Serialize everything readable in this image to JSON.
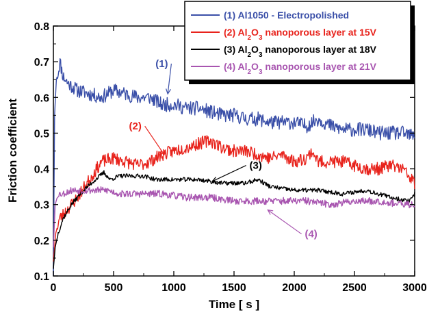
{
  "chart_data": {
    "type": "line",
    "title": "",
    "xlabel": "Time [ s ]",
    "ylabel": "Friction coefficient",
    "xlim": [
      0,
      3000
    ],
    "ylim": [
      0.1,
      0.8
    ],
    "x_ticks": [
      0,
      500,
      1000,
      1500,
      2000,
      2500,
      3000
    ],
    "y_ticks": [
      0.1,
      0.2,
      0.3,
      0.4,
      0.5,
      0.6,
      0.7,
      0.8
    ],
    "x_tick_labels": [
      "0",
      "500",
      "1000",
      "1500",
      "2000",
      "2500",
      "3000"
    ],
    "y_tick_labels": [
      "0.1",
      "0.2",
      "0.3",
      "0.4",
      "0.5",
      "0.6",
      "0.7",
      "0.8"
    ],
    "grid": false,
    "legend_position": "top-right",
    "legend": [
      {
        "prefix": "(1) Al1050 - Electropolished",
        "sub1": "",
        "mid": "",
        "sub2": "",
        "suffix": "",
        "color": "#3a4fa8"
      },
      {
        "prefix": "(2) Al",
        "sub1": "2",
        "mid": "O",
        "sub2": "3",
        "suffix": " nanoporous layer at 15V",
        "color": "#e8231c"
      },
      {
        "prefix": "(3) Al",
        "sub1": "2",
        "mid": "O",
        "sub2": "3",
        "suffix": " nanoporous layer at 18V",
        "color": "#000000"
      },
      {
        "prefix": "(4) Al",
        "sub1": "2",
        "mid": "O",
        "sub2": "3",
        "suffix": " nanoporous layer at 21V",
        "color": "#a855b0"
      }
    ],
    "annotations": [
      {
        "text": "(1)",
        "color": "#3a4fa8",
        "label_x": 900,
        "label_y": 0.685,
        "tip_x": 950,
        "tip_y": 0.61
      },
      {
        "text": "(2)",
        "color": "#e8231c",
        "label_x": 680,
        "label_y": 0.51,
        "tip_x": 920,
        "tip_y": 0.44
      },
      {
        "text": "(3)",
        "color": "#000000",
        "label_x": 1680,
        "label_y": 0.4,
        "tip_x": 1320,
        "tip_y": 0.365
      },
      {
        "text": "(4)",
        "color": "#a855b0",
        "label_x": 2140,
        "label_y": 0.208,
        "tip_x": 1780,
        "tip_y": 0.285
      }
    ],
    "series": [
      {
        "name": "(1) Al1050 - Electropolished",
        "color": "#3a4fa8",
        "noise": 0.02,
        "seed": 11,
        "x": [
          0,
          10,
          25,
          40,
          55,
          80,
          120,
          200,
          300,
          400,
          500,
          600,
          700,
          800,
          900,
          1000,
          1100,
          1200,
          1300,
          1400,
          1500,
          1600,
          1700,
          1800,
          1900,
          2000,
          2100,
          2200,
          2300,
          2400,
          2500,
          2600,
          2700,
          2800,
          2900,
          3000
        ],
        "y": [
          0.1,
          0.55,
          0.65,
          0.67,
          0.7,
          0.66,
          0.64,
          0.62,
          0.61,
          0.6,
          0.62,
          0.61,
          0.6,
          0.6,
          0.58,
          0.58,
          0.57,
          0.57,
          0.56,
          0.55,
          0.55,
          0.54,
          0.54,
          0.53,
          0.53,
          0.53,
          0.52,
          0.54,
          0.52,
          0.51,
          0.51,
          0.51,
          0.5,
          0.5,
          0.5,
          0.49
        ]
      },
      {
        "name": "(2) Al2O3 nanoporous layer at 15V",
        "color": "#e8231c",
        "noise": 0.018,
        "seed": 23,
        "x": [
          0,
          20,
          50,
          100,
          200,
          300,
          400,
          500,
          600,
          700,
          800,
          900,
          1000,
          1100,
          1200,
          1300,
          1400,
          1500,
          1600,
          1700,
          1800,
          1900,
          2000,
          2100,
          2150,
          2200,
          2300,
          2400,
          2500,
          2600,
          2700,
          2800,
          2900,
          2950,
          3000
        ],
        "y": [
          0.14,
          0.22,
          0.26,
          0.28,
          0.32,
          0.37,
          0.42,
          0.43,
          0.42,
          0.41,
          0.42,
          0.44,
          0.45,
          0.46,
          0.47,
          0.48,
          0.46,
          0.45,
          0.45,
          0.44,
          0.43,
          0.44,
          0.42,
          0.43,
          0.45,
          0.42,
          0.42,
          0.42,
          0.41,
          0.4,
          0.4,
          0.41,
          0.4,
          0.38,
          0.36
        ]
      },
      {
        "name": "(3) Al2O3 nanoporous layer at 18V",
        "color": "#000000",
        "noise": 0.006,
        "seed": 37,
        "x": [
          0,
          15,
          40,
          80,
          150,
          250,
          350,
          420,
          470,
          550,
          650,
          750,
          850,
          1000,
          1200,
          1400,
          1600,
          1700,
          1800,
          2000,
          2200,
          2400,
          2600,
          2800,
          2950,
          3000
        ],
        "y": [
          0.12,
          0.18,
          0.22,
          0.26,
          0.3,
          0.34,
          0.37,
          0.39,
          0.37,
          0.38,
          0.38,
          0.38,
          0.37,
          0.37,
          0.37,
          0.36,
          0.36,
          0.37,
          0.35,
          0.34,
          0.34,
          0.33,
          0.34,
          0.32,
          0.31,
          0.33
        ]
      },
      {
        "name": "(4) Al2O3 nanoporous layer at 21V",
        "color": "#a855b0",
        "noise": 0.01,
        "seed": 53,
        "x": [
          0,
          15,
          40,
          80,
          150,
          250,
          350,
          450,
          550,
          700,
          900,
          1100,
          1300,
          1500,
          1700,
          1900,
          2100,
          2300,
          2500,
          2700,
          2900,
          3000
        ],
        "y": [
          0.18,
          0.3,
          0.33,
          0.33,
          0.34,
          0.34,
          0.34,
          0.34,
          0.33,
          0.33,
          0.33,
          0.32,
          0.32,
          0.31,
          0.31,
          0.31,
          0.31,
          0.3,
          0.31,
          0.31,
          0.3,
          0.3
        ]
      }
    ]
  }
}
